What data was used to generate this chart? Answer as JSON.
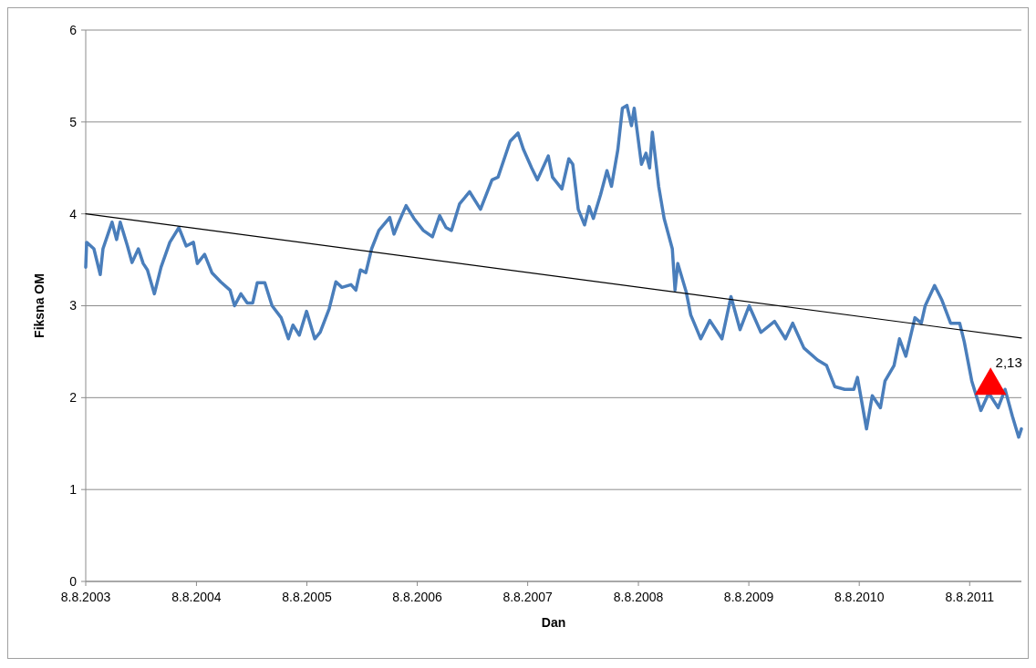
{
  "chart_data": {
    "type": "line",
    "xlabel": "Dan",
    "ylabel": "Fiksna OM",
    "xlim": [
      "2003-08-08",
      "2012-01-26"
    ],
    "xticks": [
      {
        "value": "2003-08-08",
        "label": "8.8.2003"
      },
      {
        "value": "2004-08-08",
        "label": "8.8.2004"
      },
      {
        "value": "2005-08-08",
        "label": "8.8.2005"
      },
      {
        "value": "2006-08-08",
        "label": "8.8.2006"
      },
      {
        "value": "2007-08-08",
        "label": "8.8.2007"
      },
      {
        "value": "2008-08-08",
        "label": "8.8.2008"
      },
      {
        "value": "2009-08-08",
        "label": "8.8.2009"
      },
      {
        "value": "2010-08-08",
        "label": "8.8.2010"
      },
      {
        "value": "2011-08-08",
        "label": "8.8.2011"
      }
    ],
    "ylim": [
      0,
      6
    ],
    "yticks": [
      0,
      1,
      2,
      3,
      4,
      5,
      6
    ],
    "grid": "y",
    "series": [
      {
        "color": "#4a7ebb",
        "x": [
          "2003-08-08",
          "2003-08-11",
          "2003-09-04",
          "2003-09-25",
          "2003-10-04",
          "2003-11-03",
          "2003-11-18",
          "2003-11-30",
          "2003-12-24",
          "2004-01-08",
          "2004-01-29",
          "2004-02-14",
          "2004-02-28",
          "2004-03-22",
          "2004-04-13",
          "2004-05-12",
          "2004-06-11",
          "2004-07-05",
          "2004-07-29",
          "2004-08-11",
          "2004-09-04",
          "2004-09-28",
          "2004-10-27",
          "2004-11-27",
          "2004-12-12",
          "2005-01-02",
          "2005-01-23",
          "2005-02-10",
          "2005-02-25",
          "2005-03-22",
          "2005-04-15",
          "2005-05-15",
          "2005-06-08",
          "2005-06-23",
          "2005-07-14",
          "2005-08-07",
          "2005-09-03",
          "2005-09-21",
          "2005-10-21",
          "2005-11-12",
          "2005-12-02",
          "2006-01-01",
          "2006-01-17",
          "2006-02-01",
          "2006-02-19",
          "2006-03-10",
          "2006-04-03",
          "2006-05-09",
          "2006-05-23",
          "2006-06-08",
          "2006-07-02",
          "2006-07-28",
          "2006-08-28",
          "2006-09-27",
          "2006-10-21",
          "2006-11-11",
          "2006-11-29",
          "2006-12-26",
          "2007-01-28",
          "2007-03-05",
          "2007-04-12",
          "2007-05-02",
          "2007-06-11",
          "2007-07-07",
          "2007-07-25",
          "2007-08-21",
          "2007-09-09",
          "2007-10-15",
          "2007-10-29",
          "2007-11-29",
          "2007-12-22",
          "2008-01-04",
          "2008-01-22",
          "2008-02-12",
          "2008-02-27",
          "2008-03-12",
          "2008-04-05",
          "2008-04-26",
          "2008-05-11",
          "2008-06-01",
          "2008-06-16",
          "2008-07-01",
          "2008-07-16",
          "2008-07-25",
          "2008-08-18",
          "2008-09-02",
          "2008-09-14",
          "2008-09-23",
          "2008-10-14",
          "2008-11-01",
          "2008-11-28",
          "2008-12-07",
          "2008-12-16",
          "2009-01-13",
          "2009-01-28",
          "2009-03-02",
          "2009-04-01",
          "2009-05-11",
          "2009-06-10",
          "2009-07-10",
          "2009-08-09",
          "2009-09-17",
          "2009-11-01",
          "2009-12-07",
          "2009-12-31",
          "2010-02-06",
          "2010-03-23",
          "2010-04-22",
          "2010-05-19",
          "2010-06-21",
          "2010-07-21",
          "2010-08-02",
          "2010-09-01",
          "2010-09-20",
          "2010-10-17",
          "2010-11-01",
          "2010-12-01",
          "2010-12-19",
          "2011-01-09",
          "2011-02-08",
          "2011-03-01",
          "2011-03-14",
          "2011-04-14",
          "2011-05-07",
          "2011-06-06",
          "2011-07-06",
          "2011-07-21",
          "2011-08-15",
          "2011-09-14",
          "2011-10-10",
          "2011-11-10",
          "2011-12-03",
          "2011-12-27",
          "2012-01-17",
          "2012-01-26"
        ],
        "values": [
          3.42,
          3.69,
          3.62,
          3.34,
          3.62,
          3.91,
          3.72,
          3.91,
          3.65,
          3.47,
          3.62,
          3.46,
          3.39,
          3.13,
          3.42,
          3.69,
          3.85,
          3.65,
          3.69,
          3.46,
          3.56,
          3.36,
          3.26,
          3.17,
          3.0,
          3.13,
          3.03,
          3.03,
          3.25,
          3.25,
          3.0,
          2.87,
          2.64,
          2.79,
          2.68,
          2.94,
          2.64,
          2.71,
          2.97,
          3.26,
          3.2,
          3.23,
          3.17,
          3.39,
          3.36,
          3.62,
          3.82,
          3.96,
          3.78,
          3.91,
          4.09,
          3.95,
          3.82,
          3.75,
          3.98,
          3.85,
          3.82,
          4.11,
          4.24,
          4.05,
          4.37,
          4.4,
          4.79,
          4.88,
          4.7,
          4.5,
          4.37,
          4.63,
          4.4,
          4.27,
          4.6,
          4.54,
          4.05,
          3.88,
          4.08,
          3.95,
          4.21,
          4.47,
          4.3,
          4.7,
          5.15,
          5.18,
          4.96,
          5.15,
          4.54,
          4.66,
          4.5,
          4.89,
          4.3,
          3.95,
          3.62,
          3.17,
          3.46,
          3.15,
          2.9,
          2.64,
          2.84,
          2.64,
          3.1,
          2.74,
          3.0,
          2.71,
          2.83,
          2.64,
          2.81,
          2.54,
          2.41,
          2.35,
          2.12,
          2.09,
          2.09,
          2.22,
          1.66,
          2.02,
          1.89,
          2.18,
          2.35,
          2.64,
          2.45,
          2.87,
          2.81,
          3.0,
          3.22,
          3.07,
          2.81,
          2.81,
          2.61,
          2.18,
          1.86,
          2.05,
          1.89,
          2.09,
          1.8,
          1.57,
          1.66
        ]
      },
      {
        "type": "line",
        "color": "#000000",
        "x": [
          "2003-08-08",
          "2012-01-26"
        ],
        "values": [
          4.0,
          2.65
        ]
      },
      {
        "type": "scatter",
        "color": "#ff0000",
        "marker": "triangle",
        "x": [
          "2011-10-16"
        ],
        "values": [
          2.13
        ],
        "value_labels": [
          "2,13"
        ]
      }
    ]
  }
}
